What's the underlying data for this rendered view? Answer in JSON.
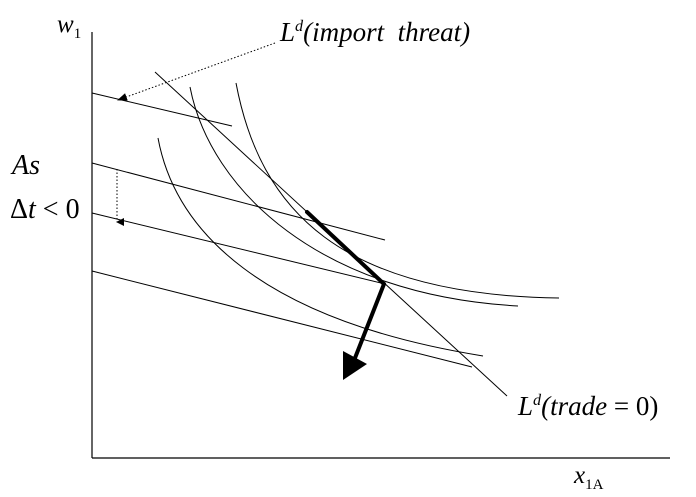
{
  "diagram": {
    "y_axis_label": {
      "base": "w",
      "sub": "1"
    },
    "x_axis_label": {
      "base": "x",
      "sub": "1A"
    },
    "labor_demand_import_threat": {
      "base": "L",
      "sup": "d",
      "text": "(import  threat)"
    },
    "labor_demand_no_trade": {
      "base": "L",
      "sup": "d",
      "text_open": "(trade",
      "text_eq": " = ",
      "text_zero": "0)"
    },
    "shock_label_line1": "As",
    "shock_label_line2": {
      "delta": "Δ",
      "var": "t",
      "rel": " < ",
      "val": "0"
    }
  },
  "colors": {
    "line": "#000000",
    "background": "#ffffff"
  }
}
